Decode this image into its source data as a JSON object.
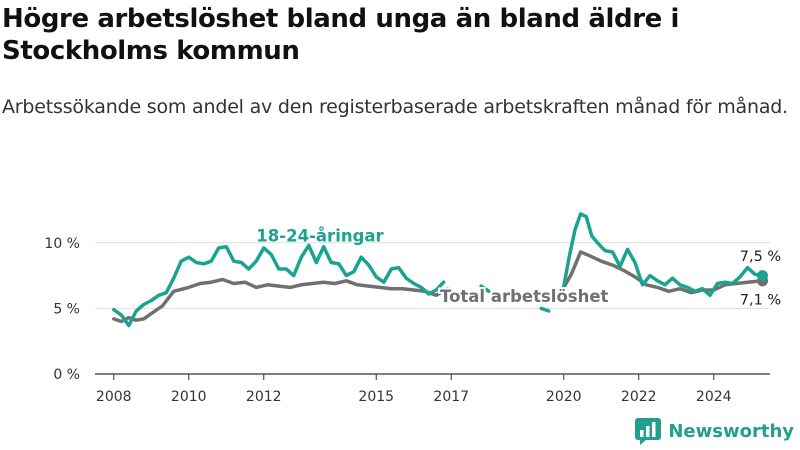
{
  "title": "Högre arbetslöshet bland unga än bland äldre i Stockholms kommun",
  "subtitle": "Arbetssökande som andel av den registerbaserade arbetskraften månad för månad.",
  "brand": {
    "name": "Newsworthy",
    "logo_icon": "newsworthy-logo-icon"
  },
  "colors": {
    "youth": "#1aa390",
    "total": "#707070",
    "grid": "#dddddd",
    "axis": "#333333",
    "brand": "#21a08c"
  },
  "chart_data": {
    "type": "line",
    "title": "",
    "xlabel": "",
    "ylabel": "",
    "ylim": [
      0,
      12.5
    ],
    "y_ticks": [
      0,
      5,
      10
    ],
    "y_tick_labels": [
      "0 %",
      "5 %",
      "10 %"
    ],
    "x_range": [
      2007.5,
      2025.5
    ],
    "x_ticks": [
      2008,
      2010,
      2012,
      2015,
      2017,
      2020,
      2022,
      2024
    ],
    "x_tick_labels": [
      "2008",
      "2010",
      "2012",
      "2015",
      "2017",
      "2020",
      "2022",
      "2024"
    ],
    "grid": true,
    "series": [
      {
        "name": "18-24-åringar",
        "color": "#1aa390",
        "end_label": "7,5 %",
        "segments": [
          [
            [
              2008.0,
              4.9
            ],
            [
              2008.2,
              4.5
            ],
            [
              2008.4,
              3.7
            ],
            [
              2008.6,
              4.8
            ],
            [
              2008.8,
              5.3
            ],
            [
              2009.0,
              5.6
            ],
            [
              2009.2,
              6.0
            ],
            [
              2009.4,
              6.2
            ],
            [
              2009.6,
              7.3
            ],
            [
              2009.8,
              8.6
            ],
            [
              2010.0,
              8.9
            ],
            [
              2010.2,
              8.5
            ],
            [
              2010.4,
              8.4
            ],
            [
              2010.6,
              8.6
            ],
            [
              2010.8,
              9.6
            ],
            [
              2011.0,
              9.7
            ],
            [
              2011.2,
              8.6
            ],
            [
              2011.4,
              8.5
            ],
            [
              2011.6,
              8.0
            ],
            [
              2011.8,
              8.6
            ],
            [
              2012.0,
              9.6
            ],
            [
              2012.2,
              9.1
            ],
            [
              2012.4,
              8.0
            ],
            [
              2012.6,
              8.0
            ],
            [
              2012.8,
              7.5
            ],
            [
              2013.0,
              8.9
            ],
            [
              2013.2,
              9.8
            ],
            [
              2013.4,
              8.5
            ],
            [
              2013.6,
              9.7
            ],
            [
              2013.8,
              8.5
            ],
            [
              2014.0,
              8.4
            ],
            [
              2014.2,
              7.5
            ],
            [
              2014.4,
              7.8
            ],
            [
              2014.6,
              8.9
            ],
            [
              2014.8,
              8.3
            ],
            [
              2015.0,
              7.4
            ],
            [
              2015.2,
              7.0
            ],
            [
              2015.4,
              8.0
            ],
            [
              2015.6,
              8.1
            ],
            [
              2015.8,
              7.3
            ],
            [
              2016.0,
              6.9
            ],
            [
              2016.2,
              6.6
            ],
            [
              2016.4,
              6.1
            ],
            [
              2016.6,
              6.4
            ],
            [
              2016.8,
              7.0
            ]
          ],
          [
            [
              2017.8,
              6.7
            ],
            [
              2018.0,
              6.3
            ]
          ],
          [
            [
              2019.4,
              5.0
            ],
            [
              2019.6,
              4.8
            ]
          ],
          [
            [
              2020.0,
              6.7
            ],
            [
              2020.15,
              9.0
            ],
            [
              2020.3,
              11.0
            ],
            [
              2020.45,
              12.2
            ],
            [
              2020.6,
              12.0
            ],
            [
              2020.75,
              10.5
            ],
            [
              2020.9,
              10.0
            ],
            [
              2021.1,
              9.4
            ],
            [
              2021.3,
              9.3
            ],
            [
              2021.5,
              8.2
            ],
            [
              2021.7,
              9.5
            ],
            [
              2021.9,
              8.5
            ],
            [
              2022.1,
              6.8
            ],
            [
              2022.3,
              7.5
            ],
            [
              2022.5,
              7.1
            ],
            [
              2022.7,
              6.8
            ],
            [
              2022.9,
              7.3
            ],
            [
              2023.1,
              6.8
            ],
            [
              2023.3,
              6.6
            ],
            [
              2023.5,
              6.3
            ],
            [
              2023.7,
              6.5
            ],
            [
              2023.9,
              6.0
            ],
            [
              2024.1,
              6.9
            ],
            [
              2024.3,
              7.0
            ],
            [
              2024.5,
              6.9
            ],
            [
              2024.7,
              7.4
            ],
            [
              2024.9,
              8.1
            ],
            [
              2025.1,
              7.6
            ],
            [
              2025.3,
              7.5
            ]
          ]
        ]
      },
      {
        "name": "Total arbetslöshet",
        "color": "#707070",
        "end_label": "7,1 %",
        "segments": [
          [
            [
              2008.0,
              4.2
            ],
            [
              2008.2,
              4.0
            ],
            [
              2008.4,
              4.3
            ],
            [
              2008.6,
              4.1
            ],
            [
              2008.8,
              4.2
            ],
            [
              2009.0,
              4.6
            ],
            [
              2009.3,
              5.2
            ],
            [
              2009.6,
              6.3
            ],
            [
              2010.0,
              6.6
            ],
            [
              2010.3,
              6.9
            ],
            [
              2010.6,
              7.0
            ],
            [
              2010.9,
              7.2
            ],
            [
              2011.2,
              6.9
            ],
            [
              2011.5,
              7.0
            ],
            [
              2011.8,
              6.6
            ],
            [
              2012.1,
              6.8
            ],
            [
              2012.4,
              6.7
            ],
            [
              2012.7,
              6.6
            ],
            [
              2013.0,
              6.8
            ],
            [
              2013.3,
              6.9
            ],
            [
              2013.6,
              7.0
            ],
            [
              2013.9,
              6.9
            ],
            [
              2014.2,
              7.1
            ],
            [
              2014.5,
              6.8
            ],
            [
              2014.8,
              6.7
            ],
            [
              2015.1,
              6.6
            ],
            [
              2015.4,
              6.5
            ],
            [
              2015.7,
              6.5
            ],
            [
              2016.0,
              6.4
            ],
            [
              2016.3,
              6.3
            ],
            [
              2016.6,
              6.0
            ],
            [
              2016.9,
              6.5
            ]
          ],
          [
            [
              2020.0,
              6.6
            ],
            [
              2020.2,
              7.6
            ],
            [
              2020.45,
              9.3
            ],
            [
              2020.7,
              9.0
            ],
            [
              2021.0,
              8.6
            ],
            [
              2021.3,
              8.3
            ],
            [
              2021.6,
              7.9
            ],
            [
              2021.9,
              7.4
            ],
            [
              2022.2,
              6.8
            ],
            [
              2022.5,
              6.6
            ],
            [
              2022.8,
              6.3
            ],
            [
              2023.1,
              6.5
            ],
            [
              2023.4,
              6.2
            ],
            [
              2023.7,
              6.4
            ],
            [
              2024.0,
              6.4
            ],
            [
              2024.3,
              6.8
            ],
            [
              2024.6,
              6.9
            ],
            [
              2024.9,
              7.0
            ],
            [
              2025.3,
              7.1
            ]
          ]
        ]
      }
    ],
    "annotations": [
      {
        "text": "18-24-åringar",
        "series": "18-24-åringar"
      },
      {
        "text": "Total arbetslöshet",
        "series": "Total arbetslöshet"
      }
    ]
  }
}
